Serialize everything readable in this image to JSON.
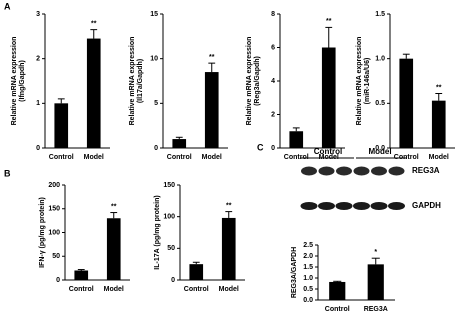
{
  "panels": [
    "A",
    "B",
    "C"
  ],
  "blot": {
    "groups": [
      "Control",
      "Model"
    ],
    "rows": [
      "REG3A",
      "GAPDH"
    ]
  },
  "chart_data": [
    {
      "type": "bar",
      "ylabel": [
        "Relative mRNA expression",
        "(Ifng/Gapdh)"
      ],
      "categories": [
        "Control",
        "Model"
      ],
      "values": [
        1.0,
        2.45
      ],
      "errors": [
        0.1,
        0.2
      ],
      "significance": [
        null,
        "**"
      ],
      "color": "#000000",
      "ylim": [
        0,
        3
      ],
      "yticks": [
        0,
        1,
        2,
        3
      ]
    },
    {
      "type": "bar",
      "ylabel": [
        "Relative mRNA expression",
        "(Il17a/Gapdh)"
      ],
      "categories": [
        "Control",
        "Model"
      ],
      "values": [
        1.0,
        8.5
      ],
      "errors": [
        0.2,
        1.0
      ],
      "significance": [
        null,
        "**"
      ],
      "color": "#000000",
      "ylim": [
        0,
        15
      ],
      "yticks": [
        0,
        5,
        10,
        15
      ]
    },
    {
      "type": "bar",
      "ylabel": [
        "Relative mRNA expression",
        "(Reg3a/Gapdh)"
      ],
      "categories": [
        "Control",
        "Model"
      ],
      "values": [
        1.0,
        6.0
      ],
      "errors": [
        0.2,
        1.2
      ],
      "significance": [
        null,
        "**"
      ],
      "color": "#000000",
      "ylim": [
        0,
        8
      ],
      "yticks": [
        0,
        2,
        4,
        6,
        8
      ]
    },
    {
      "type": "bar",
      "ylabel": [
        "Relative mRNA expression",
        "(miR-146a/U6)"
      ],
      "categories": [
        "Control",
        "Model"
      ],
      "values": [
        1.0,
        0.53
      ],
      "errors": [
        0.05,
        0.08
      ],
      "significance": [
        null,
        "**"
      ],
      "color": "#000000",
      "ylim": [
        0,
        1.5
      ],
      "yticks": [
        {
          "value": 0,
          "label": "0.0"
        },
        {
          "value": 0.5,
          "label": "0.5"
        },
        {
          "value": 1,
          "label": "1.0"
        },
        {
          "value": 1.5,
          "label": "1.5"
        }
      ]
    },
    {
      "type": "bar",
      "ylabel": [
        "IFN-γ (pg/mg protein)"
      ],
      "categories": [
        "Control",
        "Model"
      ],
      "values": [
        20,
        130
      ],
      "errors": [
        2,
        12
      ],
      "significance": [
        null,
        "**"
      ],
      "color": "#000000",
      "ylim": [
        0,
        200
      ],
      "yticks": [
        0,
        50,
        100,
        150,
        200
      ]
    },
    {
      "type": "bar",
      "ylabel": [
        "IL-17A (pg/mg protein)"
      ],
      "categories": [
        "Control",
        "Model"
      ],
      "values": [
        25,
        98
      ],
      "errors": [
        3,
        10
      ],
      "significance": [
        null,
        "**"
      ],
      "color": "#000000",
      "ylim": [
        0,
        150
      ],
      "yticks": [
        0,
        50,
        100,
        150
      ]
    },
    {
      "type": "bar",
      "ylabel": [
        "REG3A/GAPDH"
      ],
      "categories": [
        "Control",
        "REG3A"
      ],
      "values": [
        0.82,
        1.62
      ],
      "errors": [
        0.03,
        0.28
      ],
      "significance": [
        null,
        "*"
      ],
      "color": "#000000",
      "ylim": [
        0,
        2.5
      ],
      "yticks": [
        {
          "value": 0,
          "label": "0.0"
        },
        {
          "value": 0.5,
          "label": "0.5"
        },
        {
          "value": 1,
          "label": "1.0"
        },
        {
          "value": 1.5,
          "label": "1.5"
        },
        {
          "value": 2,
          "label": "2.0"
        },
        {
          "value": 2.5,
          "label": "2.5"
        }
      ]
    }
  ]
}
